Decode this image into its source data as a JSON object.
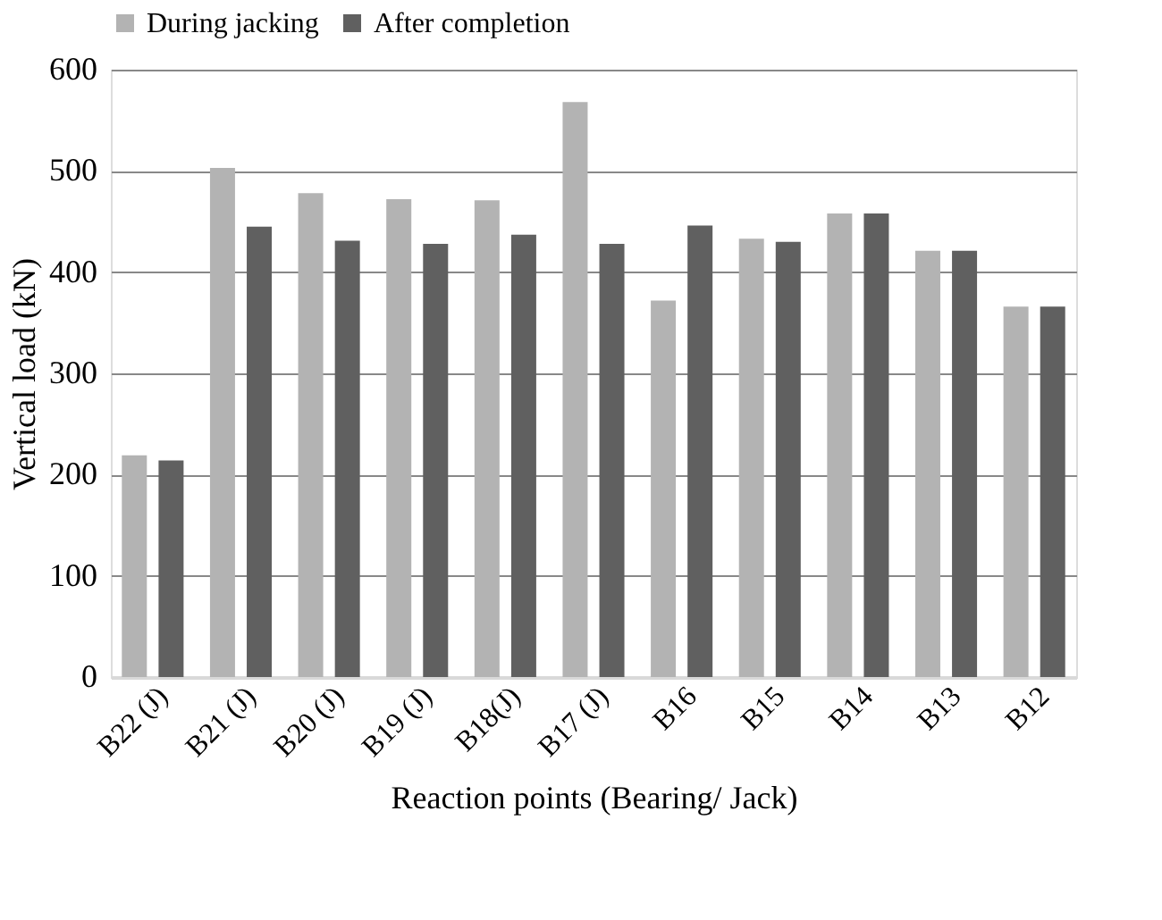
{
  "chart_data": {
    "type": "bar",
    "xlabel": "Reaction points (Bearing/ Jack)",
    "ylabel": "Vertical load (kN)",
    "categories": [
      "B22 (J)",
      "B21 (J)",
      "B20 (J)",
      "B19 (J)",
      "B18(J)",
      "B17 (J)",
      "B16",
      "B15",
      "B14",
      "B13",
      "B12"
    ],
    "series": [
      {
        "name": "During jacking",
        "color": "#b3b3b3",
        "values": [
          219,
          503,
          478,
          472,
          471,
          568,
          372,
          433,
          458,
          421,
          366
        ]
      },
      {
        "name": "After completion",
        "color": "#606060",
        "values": [
          214,
          445,
          431,
          428,
          437,
          428,
          446,
          430,
          458,
          421,
          366
        ]
      }
    ],
    "ylim": [
      0,
      600
    ],
    "yticks": [
      0,
      100,
      200,
      300,
      400,
      500,
      600
    ],
    "grid": "y",
    "legend": "top"
  }
}
